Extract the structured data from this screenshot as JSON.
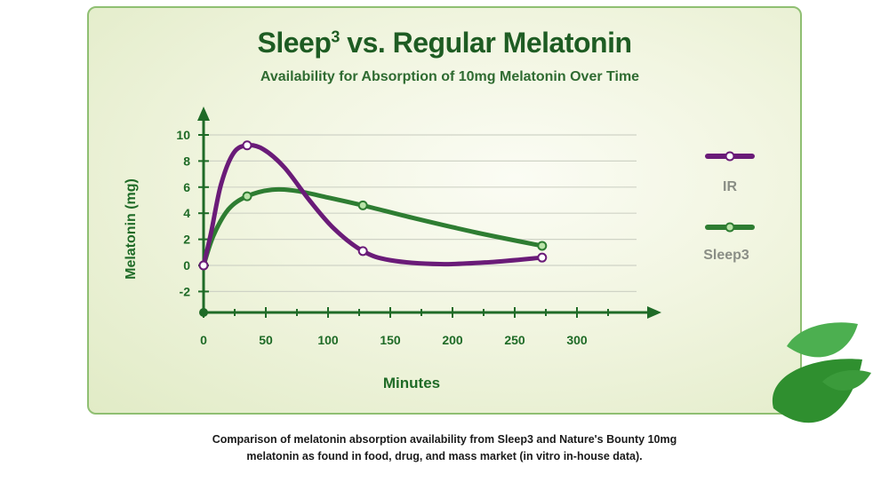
{
  "title": "Sleep",
  "title_sup": "3",
  "title_rest": " vs. Regular Melatonin",
  "subtitle": "Availability for Absorption of 10mg Melatonin Over Time",
  "caption": {
    "line1": "Comparison of melatonin absorption availability from Sleep3 and Nature's Bounty 10mg",
    "line2": "melatonin as found in food, drug, and mass market (in vitro in-house data)."
  },
  "colors": {
    "ir": "#6a1b78",
    "sleep3": "#2e7d32",
    "axis": "#1f6b27",
    "title": "#1e5c23",
    "grid": "#cfd3c6"
  },
  "chart_data": {
    "type": "line",
    "title": "Sleep3 vs. Regular Melatonin",
    "subtitle": "Availability for Absorption of 10mg Melatonin Over Time",
    "xlabel": "Minutes",
    "ylabel": "Melatonin (mg)",
    "xlim": [
      0,
      360
    ],
    "ylim": [
      -3,
      11
    ],
    "x_ticks": [
      0,
      50,
      100,
      150,
      200,
      250,
      300
    ],
    "y_ticks": [
      -2,
      0,
      2,
      4,
      6,
      8,
      10
    ],
    "grid": true,
    "legend_position": "right",
    "series": [
      {
        "name": "IR",
        "color": "#6a1b78",
        "markers": [
          [
            0,
            0
          ],
          [
            35,
            9.2
          ],
          [
            128,
            1.1
          ],
          [
            272,
            0.6
          ]
        ],
        "curve": [
          [
            0,
            0
          ],
          [
            6,
            2.5
          ],
          [
            14,
            6.2
          ],
          [
            24,
            8.6
          ],
          [
            35,
            9.2
          ],
          [
            48,
            8.9
          ],
          [
            65,
            7.5
          ],
          [
            85,
            5.0
          ],
          [
            105,
            2.8
          ],
          [
            128,
            1.1
          ],
          [
            150,
            0.4
          ],
          [
            190,
            0.1
          ],
          [
            230,
            0.25
          ],
          [
            272,
            0.6
          ]
        ]
      },
      {
        "name": "Sleep3",
        "color": "#2e7d32",
        "markers": [
          [
            0,
            0
          ],
          [
            35,
            5.3
          ],
          [
            128,
            4.6
          ],
          [
            272,
            1.5
          ]
        ],
        "curve": [
          [
            0,
            0
          ],
          [
            8,
            2.3
          ],
          [
            20,
            4.3
          ],
          [
            35,
            5.3
          ],
          [
            55,
            5.8
          ],
          [
            75,
            5.7
          ],
          [
            100,
            5.2
          ],
          [
            128,
            4.6
          ],
          [
            170,
            3.6
          ],
          [
            220,
            2.5
          ],
          [
            272,
            1.5
          ]
        ]
      }
    ]
  }
}
